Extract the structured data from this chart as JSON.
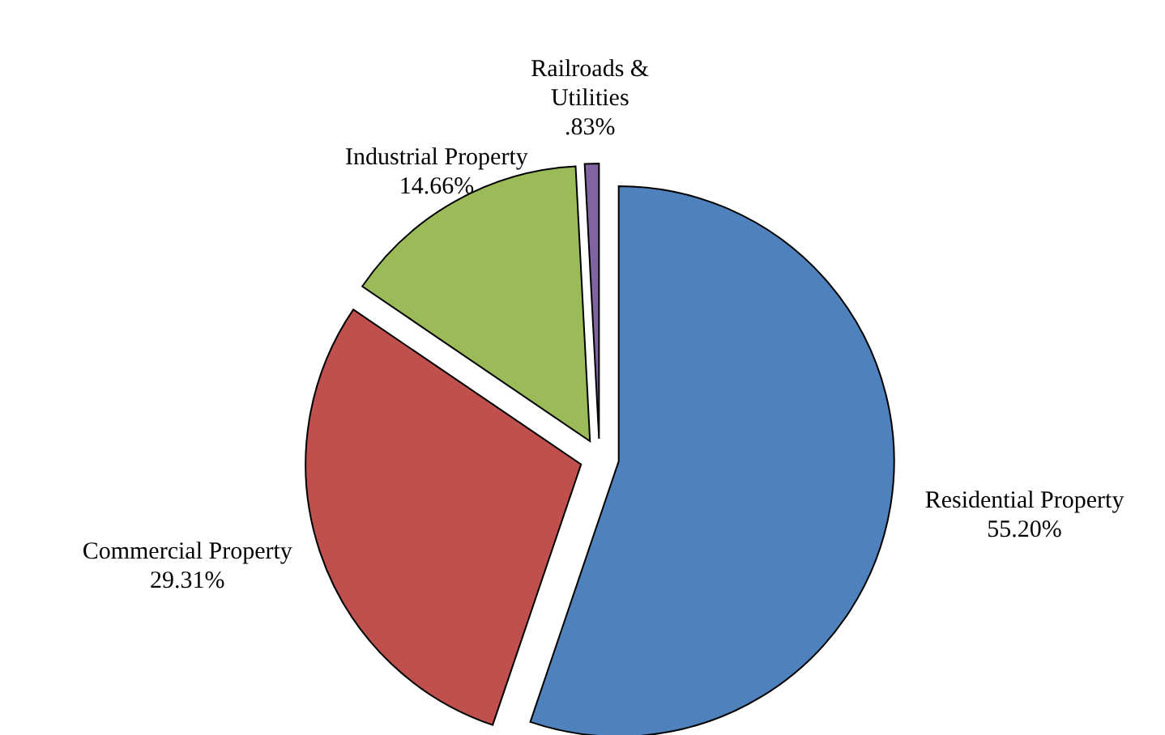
{
  "chart_data": {
    "type": "pie",
    "categories": [
      "Residential Property",
      "Commercial Property",
      "Industrial Property",
      "Railroads & Utilities"
    ],
    "values": [
      55.2,
      29.31,
      14.66,
      0.83
    ],
    "colors": [
      "#4f81bd",
      "#c0504d",
      "#9bbb59",
      "#8064a2"
    ],
    "value_labels": [
      "55.20%",
      "29.31%",
      "14.66%",
      ".83%"
    ]
  }
}
